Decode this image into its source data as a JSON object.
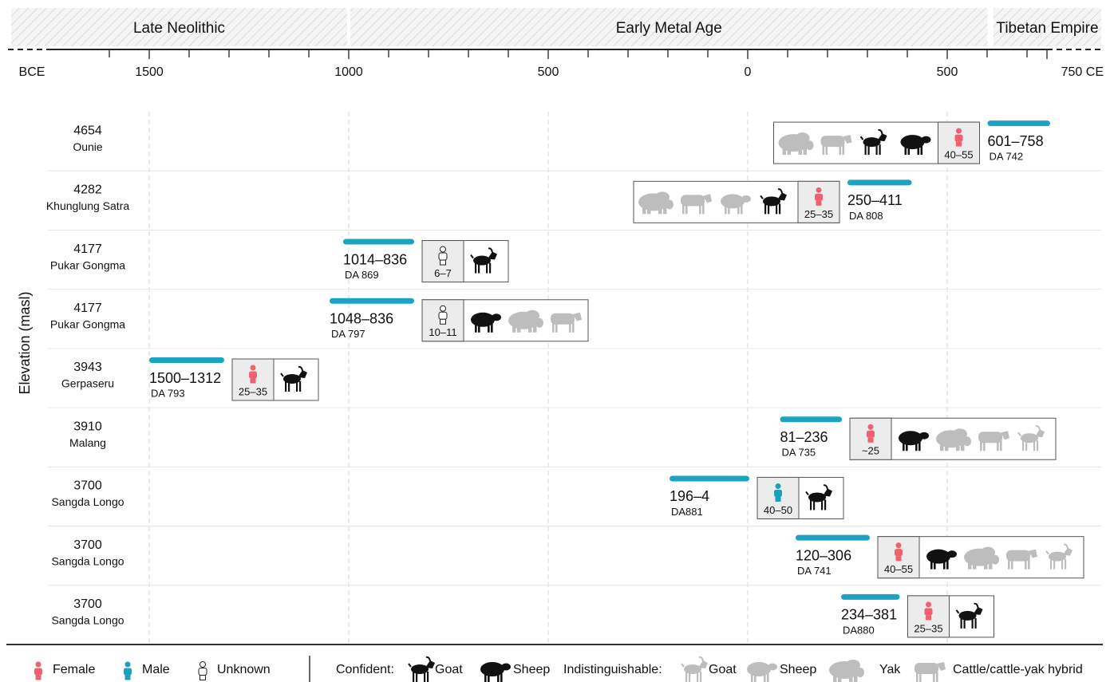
{
  "chart_data": {
    "type": "timeline",
    "xlim": [
      -1754,
      886
    ],
    "x_start_label": "BCE",
    "xticks": [
      {
        "value": -1500,
        "label": "1500"
      },
      {
        "value": -1000,
        "label": "1000"
      },
      {
        "value": -500,
        "label": "500"
      },
      0,
      500,
      {
        "value": 750,
        "label": "750 CE"
      }
    ],
    "minor_xticks": [
      -1600,
      -1400,
      -1300,
      -1200,
      -1100,
      -900,
      -800,
      -700,
      -600,
      -400,
      -300,
      -200,
      -100,
      100,
      200,
      300,
      400,
      600,
      700
    ],
    "grid": true,
    "periods": [
      {
        "name": "Late Neolithic",
        "start": -1850,
        "end": -1000
      },
      {
        "name": "Early Metal Age",
        "start": -1000,
        "end": 605
      },
      {
        "name": "Tibetan Empire",
        "start": 612,
        "end": 890
      }
    ],
    "ylabel": "Elevation (masl)",
    "colors": {
      "bar": "#1ba3c1",
      "sex": [
        "#f0606f",
        "#1a9fbd",
        "#ffffff"
      ],
      "confident": "#111111",
      "indistinct": "#bdbdbd"
    },
    "rows": [
      {
        "elevation": 4654,
        "site": "Ounie",
        "start": 601,
        "end": 758,
        "date_label": "601–758",
        "lab": "DA 742",
        "sex": "Female",
        "age": "40–55",
        "animals": [
          {
            "species": "Yak",
            "confident": false
          },
          {
            "species": "Cattle/cattle-yak hybrid",
            "confident": false
          },
          {
            "species": "Goat",
            "confident": true
          },
          {
            "species": "Sheep",
            "confident": true
          }
        ]
      },
      {
        "elevation": 4282,
        "site": "Khunglung Satra",
        "start": 250,
        "end": 411,
        "date_label": "250–411",
        "lab": "DA 808",
        "sex": "Female",
        "age": "25–35",
        "animals": [
          {
            "species": "Yak",
            "confident": false
          },
          {
            "species": "Cattle/cattle-yak hybrid",
            "confident": false
          },
          {
            "species": "Sheep",
            "confident": false
          },
          {
            "species": "Goat",
            "confident": true
          }
        ]
      },
      {
        "elevation": 4177,
        "site": "Pukar Gongma",
        "start": -1014,
        "end": -836,
        "date_label": "1014–836",
        "lab": "DA 869",
        "sex": "Unknown",
        "age": "6–7",
        "animals": [
          {
            "species": "Goat",
            "confident": true
          }
        ]
      },
      {
        "elevation": 4177,
        "site": "Pukar Gongma",
        "start": -1048,
        "end": -836,
        "date_label": "1048–836",
        "lab": "DA 797",
        "sex": "Unknown",
        "age": "10–11",
        "animals": [
          {
            "species": "Sheep",
            "confident": true
          },
          {
            "species": "Yak",
            "confident": false
          },
          {
            "species": "Cattle/cattle-yak hybrid",
            "confident": false
          }
        ]
      },
      {
        "elevation": 3943,
        "site": "Gerpaseru",
        "start": -1500,
        "end": -1312,
        "date_label": "1500–1312",
        "lab": "DA 793",
        "sex": "Female",
        "age": "25–35",
        "animals": [
          {
            "species": "Goat",
            "confident": true
          }
        ]
      },
      {
        "elevation": 3910,
        "site": "Malang",
        "start": 81,
        "end": 236,
        "date_label": "81–236",
        "lab": "DA 735",
        "sex": "Female",
        "age": "~25",
        "animals": [
          {
            "species": "Sheep",
            "confident": true
          },
          {
            "species": "Yak",
            "confident": false
          },
          {
            "species": "Cattle/cattle-yak hybrid",
            "confident": false
          },
          {
            "species": "Goat",
            "confident": false
          }
        ]
      },
      {
        "elevation": 3700,
        "site": "Sangda Longo",
        "start": -196,
        "end": 4,
        "date_label": "196–4",
        "lab": "DA881",
        "sex": "Male",
        "age": "40–50",
        "animals": [
          {
            "species": "Goat",
            "confident": true
          }
        ]
      },
      {
        "elevation": 3700,
        "site": "Sangda Longo",
        "start": 120,
        "end": 306,
        "date_label": "120–306",
        "lab": "DA 741",
        "sex": "Female",
        "age": "40–55",
        "animals": [
          {
            "species": "Sheep",
            "confident": true
          },
          {
            "species": "Yak",
            "confident": false
          },
          {
            "species": "Cattle/cattle-yak hybrid",
            "confident": false
          },
          {
            "species": "Goat",
            "confident": false
          }
        ]
      },
      {
        "elevation": 3700,
        "site": "Sangda Longo",
        "start": 234,
        "end": 381,
        "date_label": "234–381",
        "lab": "DA880",
        "sex": "Female",
        "age": "25–35",
        "animals": [
          {
            "species": "Goat",
            "confident": true
          }
        ]
      }
    ],
    "legend": {
      "sex": [
        "Female",
        "Male",
        "Unknown"
      ],
      "confident_label": "Confident:",
      "confident": [
        "Goat",
        "Sheep"
      ],
      "indistinct_label": "Indistinguishable:",
      "indistinct": [
        "Goat",
        "Sheep",
        "Yak",
        "Cattle/cattle-yak hybrid"
      ]
    }
  }
}
